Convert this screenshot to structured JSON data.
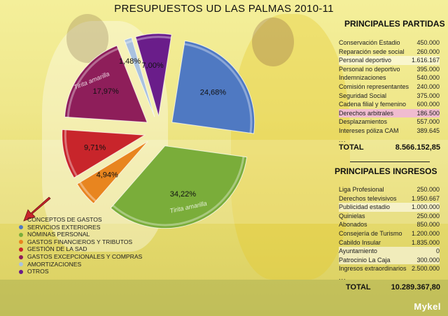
{
  "title": "PRESUPUESTOS UD LAS PALMAS 2010-11",
  "author": "Mykel",
  "chart_data": {
    "type": "pie",
    "title": "PRESUPUESTOS UD LAS PALMAS 2010-11",
    "exploded": true,
    "slices": [
      {
        "label": "SERVICIOS EXTERIORES",
        "value": 24.68,
        "display": "24,68%",
        "color": "#4f79c2"
      },
      {
        "label": "NÓMINAS PERSONAL",
        "value": 34.22,
        "display": "34,22%",
        "color": "#7aad3a"
      },
      {
        "label": "GASTOS FINANCIEROS Y TRIBUTOS",
        "value": 4.94,
        "display": "4,94%",
        "color": "#e8851f"
      },
      {
        "label": "GESTIÓN DE LA SAD",
        "value": 9.71,
        "display": "9,71%",
        "color": "#c8252b"
      },
      {
        "label": "GASTOS EXCEPCIONALES Y COMPRAS",
        "value": 17.97,
        "display": "17,97%",
        "color": "#8e1e5a"
      },
      {
        "label": "AMORTIZACIONES",
        "value": 1.48,
        "display": "1,48%",
        "color": "#a9c2df"
      },
      {
        "label": "OTROS",
        "value": 7.0,
        "display": "7,00%",
        "color": "#6a1d8a"
      }
    ],
    "overlay_text": [
      "Tirita amarilla",
      "Tirita amarilla"
    ]
  },
  "legend": {
    "header": "CONCEPTOS DE GASTOS",
    "items": [
      {
        "label": "SERVICIOS EXTERIORES",
        "color": "#4f79c2"
      },
      {
        "label": "NÓMINAS PERSONAL",
        "color": "#7aad3a"
      },
      {
        "label": "GASTOS FINANCIEROS Y TRIBUTOS",
        "color": "#e8851f"
      },
      {
        "label": "GESTIÓN DE LA SAD",
        "color": "#c8252b"
      },
      {
        "label": "GASTOS EXCEPCIONALES Y COMPRAS",
        "color": "#8e1e5a"
      },
      {
        "label": "AMORTIZACIONES",
        "color": "#a9c2df"
      },
      {
        "label": "OTROS",
        "color": "#6a1d8a"
      }
    ]
  },
  "partidas": {
    "heading": "PRINCIPALES PARTIDAS",
    "rows": [
      {
        "label": "Conservación Estadio",
        "value": "450.000",
        "highlight": "none"
      },
      {
        "label": "Reparación sede social",
        "value": "260.000",
        "highlight": "none"
      },
      {
        "label": "Personal deportivo",
        "value": "1.616.167",
        "highlight": "white"
      },
      {
        "label": "Personal no deportivo",
        "value": "395.000",
        "highlight": "none"
      },
      {
        "label": "Indemnizaciones",
        "value": "540.000",
        "highlight": "none"
      },
      {
        "label": "Comisión representantes",
        "value": "240.000",
        "highlight": "none"
      },
      {
        "label": "Seguridad Social",
        "value": "375.000",
        "highlight": "none"
      },
      {
        "label": "Cadena filial y femenino",
        "value": "600.000",
        "highlight": "none"
      },
      {
        "label": "Derechos arbitrales",
        "value": "186.500",
        "highlight": "pink"
      },
      {
        "label": "Desplazamientos",
        "value": "557.000",
        "highlight": "none"
      },
      {
        "label": "Intereses póliza CAM",
        "value": "389.645",
        "highlight": "none"
      },
      {
        "label": "...",
        "value": "",
        "highlight": "none"
      }
    ],
    "total_label": "TOTAL",
    "total_value": "8.566.152,85"
  },
  "ingresos": {
    "heading": "PRINCIPALES  INGRESOS",
    "rows": [
      {
        "label": "Liga Profesional",
        "value": "250.000",
        "highlight": "none"
      },
      {
        "label": "Derechos televisivos",
        "value": "1.950.667",
        "highlight": "none"
      },
      {
        "label": "Publicidad estadio",
        "value": "1.000.000",
        "highlight": "white"
      },
      {
        "label": "Quinielas",
        "value": "250.000",
        "highlight": "none"
      },
      {
        "label": "Abonados",
        "value": "850.000",
        "highlight": "none"
      },
      {
        "label": "Consejería de Turismo",
        "value": "1.200.000",
        "highlight": "none"
      },
      {
        "label": "Cabildo Insular",
        "value": "1.835.000",
        "highlight": "none"
      },
      {
        "label": "Ayuntamiento",
        "value": "0",
        "highlight": "white"
      },
      {
        "label": "Patrocinio La Caja",
        "value": "300.000",
        "highlight": "white"
      },
      {
        "label": "Ingresos extraordinarios",
        "value": "2.500.000",
        "highlight": "none"
      },
      {
        "label": "...",
        "value": "",
        "highlight": "none"
      }
    ],
    "total_label": "TOTAL",
    "total_value": "10.289.367,80"
  }
}
